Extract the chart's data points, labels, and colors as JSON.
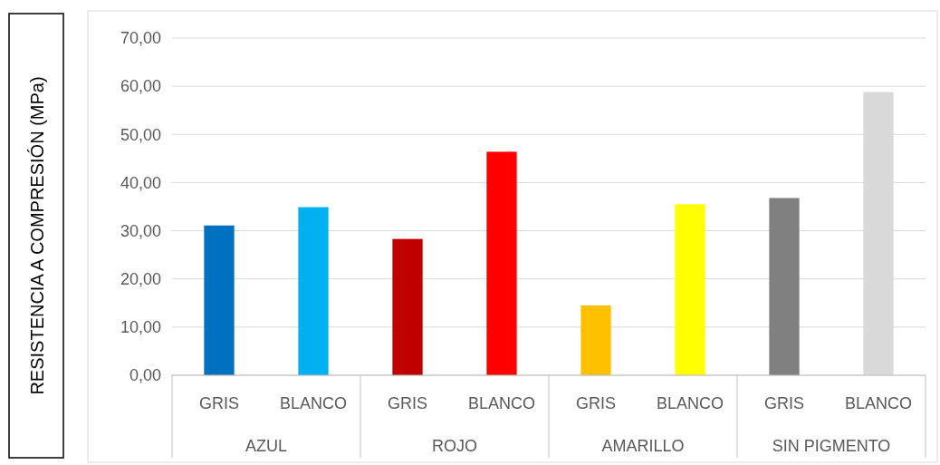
{
  "chart_data": {
    "type": "bar",
    "ylabel": "RESISTENCIA A COMPRESIÓN (MPa)",
    "categories": [
      "GRIS",
      "BLANCO",
      "GRIS",
      "BLANCO",
      "GRIS",
      "BLANCO",
      "GRIS",
      "BLANCO"
    ],
    "values": [
      31.1,
      34.9,
      28.3,
      46.4,
      14.5,
      35.5,
      36.8,
      58.8
    ],
    "colors": [
      "#0070c0",
      "#00b0f0",
      "#c00000",
      "#ff0000",
      "#ffc000",
      "#ffff00",
      "#808080",
      "#d9d9d9"
    ],
    "annotations": [
      "AZUL",
      "ROJO",
      "AMARILLO",
      "SIN PIGMENTO"
    ],
    "ylim": [
      0,
      70
    ],
    "yticks": [
      {
        "value": 0,
        "label": "0,00"
      },
      {
        "value": 10,
        "label": "10,00"
      },
      {
        "value": 20,
        "label": "20,00"
      },
      {
        "value": 30,
        "label": "30,00"
      },
      {
        "value": 40,
        "label": "40,00"
      },
      {
        "value": 50,
        "label": "50,00"
      },
      {
        "value": 60,
        "label": "60,00"
      },
      {
        "value": 70,
        "label": "70,00"
      }
    ],
    "grid": true
  }
}
